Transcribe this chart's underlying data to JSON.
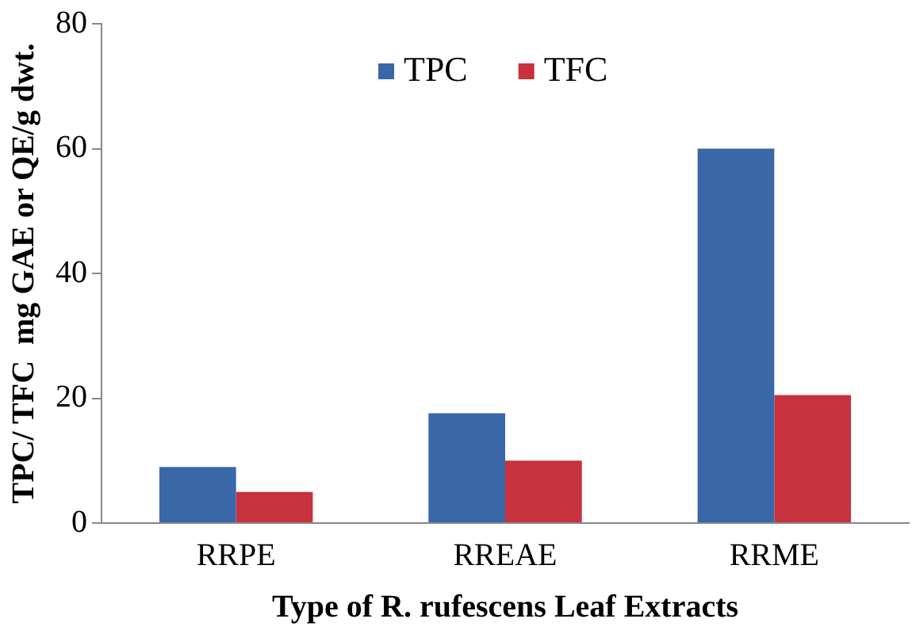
{
  "chart_data": {
    "type": "bar",
    "xlabel": "Type of R. rufescens Leaf Extracts",
    "ylabel": "TPC/ TFC  mg GAE or QE/g dwt.",
    "categories": [
      "RRPE",
      "RREAE",
      "RRME"
    ],
    "series": [
      {
        "name": "TPC",
        "color": "#3a67a8",
        "values": [
          9.0,
          17.6,
          60.0
        ]
      },
      {
        "name": "TFC",
        "color": "#c8313e",
        "values": [
          5.0,
          10.0,
          20.5
        ]
      }
    ],
    "ylim": [
      0,
      80
    ],
    "yticks": [
      0,
      20,
      40,
      60,
      80
    ],
    "grid": false,
    "legend": "top"
  }
}
